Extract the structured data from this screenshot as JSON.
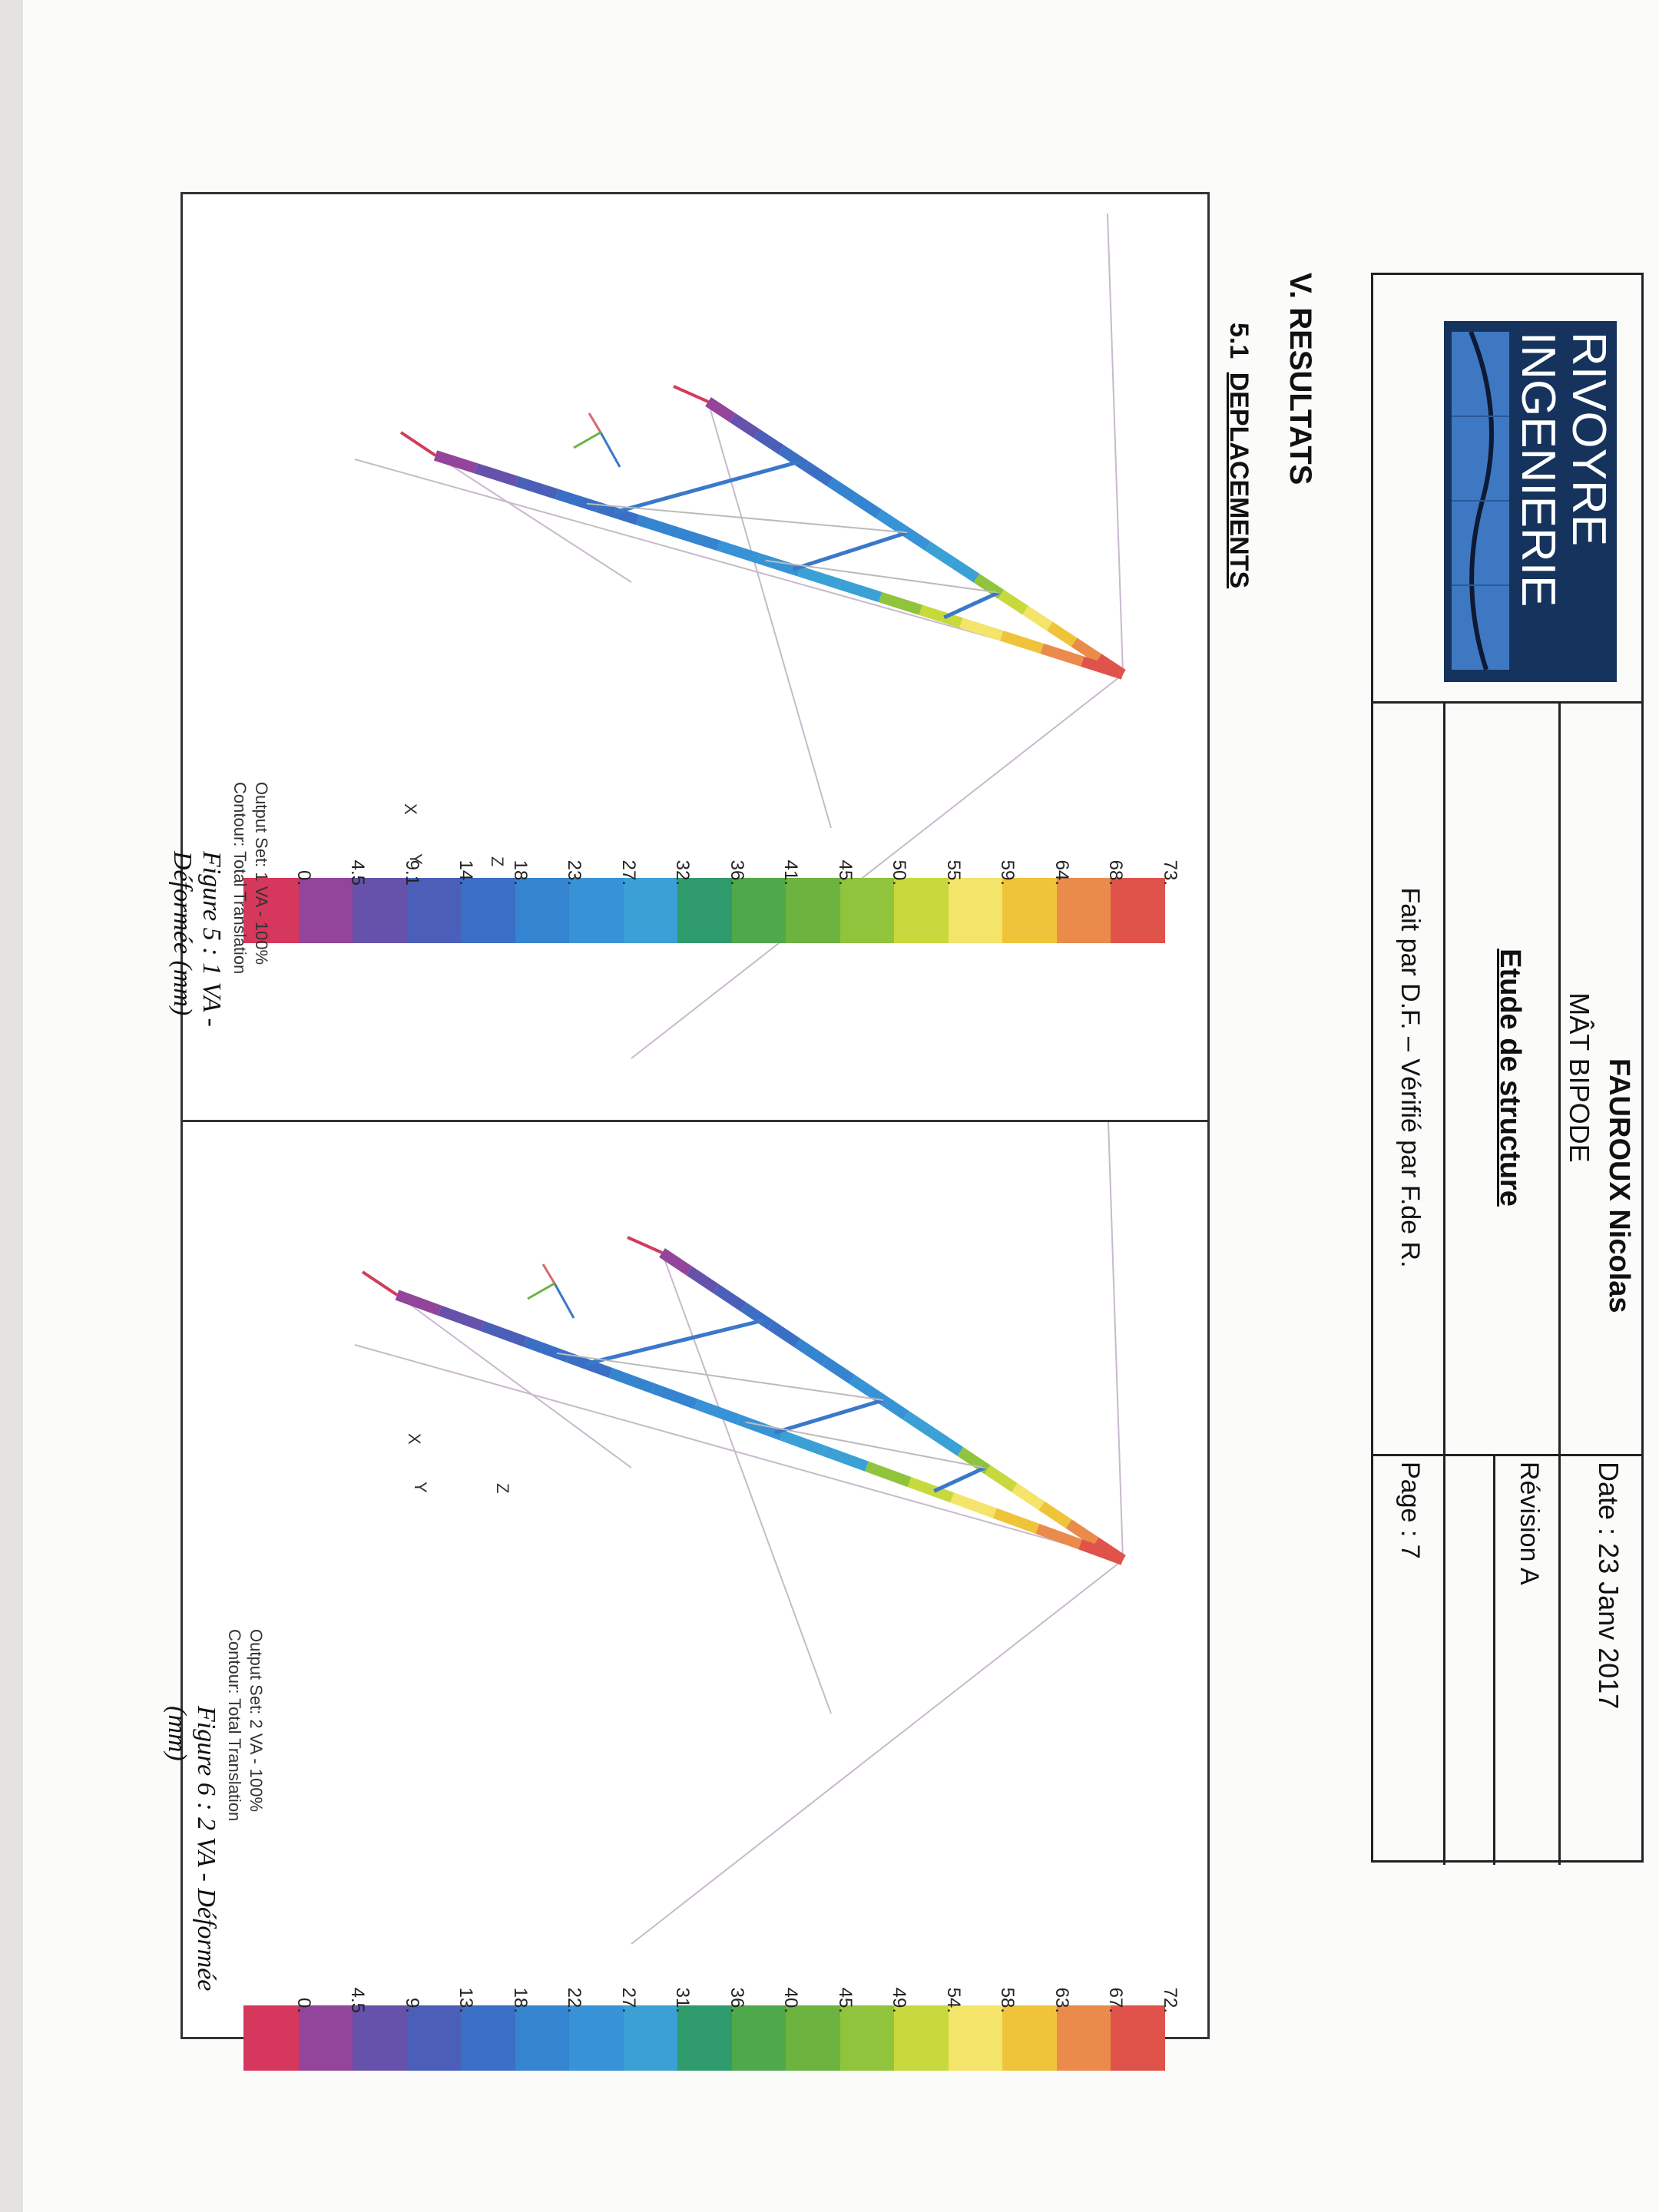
{
  "header": {
    "company_line1": "RIVOYRE",
    "company_line2": "INGENIERIE",
    "client": "FAUROUX Nicolas",
    "project": "MÂT BIPODE",
    "study": "Etude de structure",
    "authors": "Fait par D.F. – Vérifié par F.de R.",
    "date": "Date : 23 Janv 2017",
    "revision": "Révision A",
    "page": "Page : 7"
  },
  "section": {
    "title": "V. RESULTATS",
    "subsection_number": "5.1",
    "subsection_title": "DEPLACEMENTS"
  },
  "figures": [
    {
      "output_set": "Output Set: 1 VA - 100%",
      "contour": "Contour: Total Translation",
      "caption": "Figure 5 : 1 VA - Déformée (mm)",
      "axis_z": "Z",
      "axis_x": "X",
      "axis_y": "Y",
      "scale": [
        "73.",
        "68.",
        "64.",
        "59.",
        "55.",
        "50.",
        "45.",
        "41.",
        "36.",
        "32.",
        "27.",
        "23.",
        "18.",
        "14.",
        "9.1",
        "4.5",
        "0."
      ]
    },
    {
      "output_set": "Output Set: 2 VA - 100%",
      "contour": "Contour: Total Translation",
      "caption": "Figure 6 : 2 VA - Déformée (mm)",
      "axis_z": "Z",
      "axis_x": "X",
      "axis_y": "Y",
      "scale": [
        "72.",
        "67.",
        "63.",
        "58.",
        "54.",
        "49.",
        "45.",
        "40.",
        "36.",
        "31.",
        "27.",
        "22.",
        "18.",
        "13.",
        "9.",
        "4.5",
        "0."
      ]
    }
  ],
  "colors": {
    "scale_bands": [
      "#e0534a",
      "#ea8b4c",
      "#f0c43a",
      "#f4e46a",
      "#c8d93e",
      "#8fc43c",
      "#6db340",
      "#4fa84a",
      "#2f9a6c",
      "#3aa0d6",
      "#3793d6",
      "#3584d0",
      "#3b6fc6",
      "#4b5fb8",
      "#6652ab",
      "#93449b",
      "#d6375c"
    ],
    "structure_base": "#3a86d4",
    "logo_dark": "#16335e",
    "logo_light": "#3f78c2"
  }
}
